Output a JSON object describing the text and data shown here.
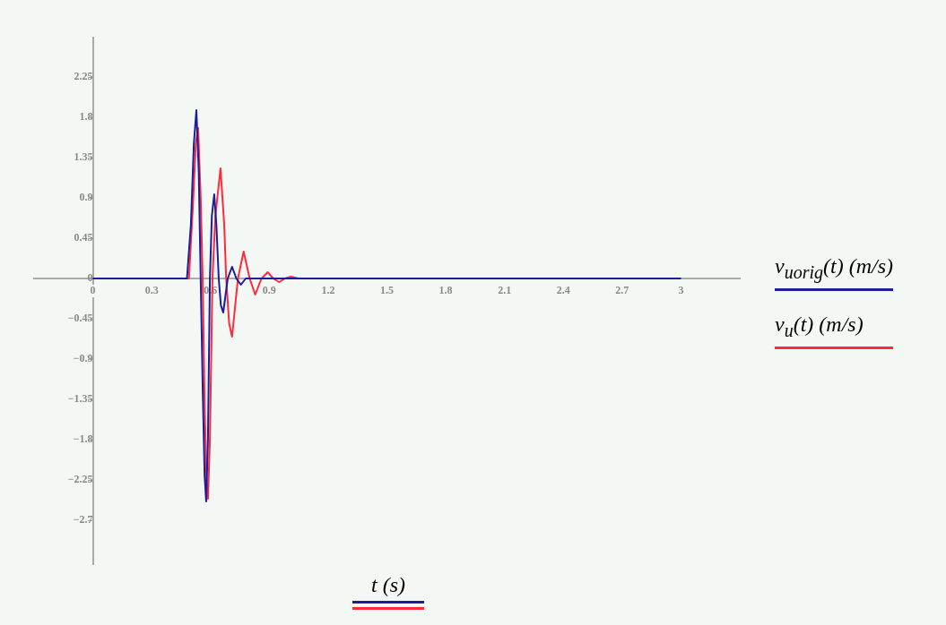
{
  "chart_data": {
    "type": "line",
    "xlabel": "t (s)",
    "legend": "right",
    "grid": false,
    "marker": "none",
    "xlim": [
      -0.3,
      3.3
    ],
    "ylim": [
      -3.19,
      2.69
    ],
    "xticks": [
      0,
      0.3,
      0.6,
      0.9,
      1.2,
      1.5,
      1.8,
      2.1,
      2.4,
      2.7,
      3
    ],
    "yticks": [
      {
        "value": -2.7,
        "label": "−2.7"
      },
      {
        "value": -2.25,
        "label": "−2.25"
      },
      {
        "value": -1.8,
        "label": "−1.8"
      },
      {
        "value": -1.35,
        "label": "−1.35"
      },
      {
        "value": -0.9,
        "label": "−0.9"
      },
      {
        "value": -0.45,
        "label": "−0.45"
      },
      0,
      0.45,
      0.9,
      1.35,
      1.8,
      2.25
    ],
    "series": [
      {
        "name": "v$_{uorig}$(t) (m/s)",
        "color": "#1c1c9c",
        "x": [
          0,
          0.48,
          0.5,
          0.515,
          0.528,
          0.54,
          0.55,
          0.56,
          0.57,
          0.578,
          0.587,
          0.597,
          0.607,
          0.619,
          0.63,
          0.642,
          0.653,
          0.665,
          0.688,
          0.71,
          0.732,
          0.755,
          0.78,
          3
        ],
        "values": [
          0,
          0,
          0.6,
          1.5,
          1.88,
          1.2,
          0,
          -1.2,
          -2.2,
          -2.49,
          -1.8,
          0,
          0.7,
          0.94,
          0.6,
          0,
          -0.3,
          -0.38,
          0,
          0.13,
          0,
          -0.07,
          0,
          0
        ]
      },
      {
        "name": "v$_{u}$(t) (m/s)",
        "color": "#ff2a3c",
        "x": [
          0,
          0.49,
          0.51,
          0.525,
          0.537,
          0.55,
          0.56,
          0.57,
          0.58,
          0.587,
          0.597,
          0.61,
          0.625,
          0.651,
          0.67,
          0.68,
          0.695,
          0.71,
          0.74,
          0.769,
          0.8,
          0.828,
          0.86,
          0.892,
          0.92,
          0.95,
          0.98,
          1.01,
          1.05,
          3
        ],
        "values": [
          0,
          0,
          0.8,
          1.5,
          1.68,
          0.9,
          0,
          -1.4,
          -2.3,
          -2.46,
          -1.8,
          0,
          0.7,
          1.23,
          0.6,
          0,
          -0.5,
          -0.65,
          0,
          0.3,
          0,
          -0.18,
          0,
          0.07,
          0,
          -0.04,
          0,
          0.02,
          0,
          0
        ]
      }
    ]
  }
}
